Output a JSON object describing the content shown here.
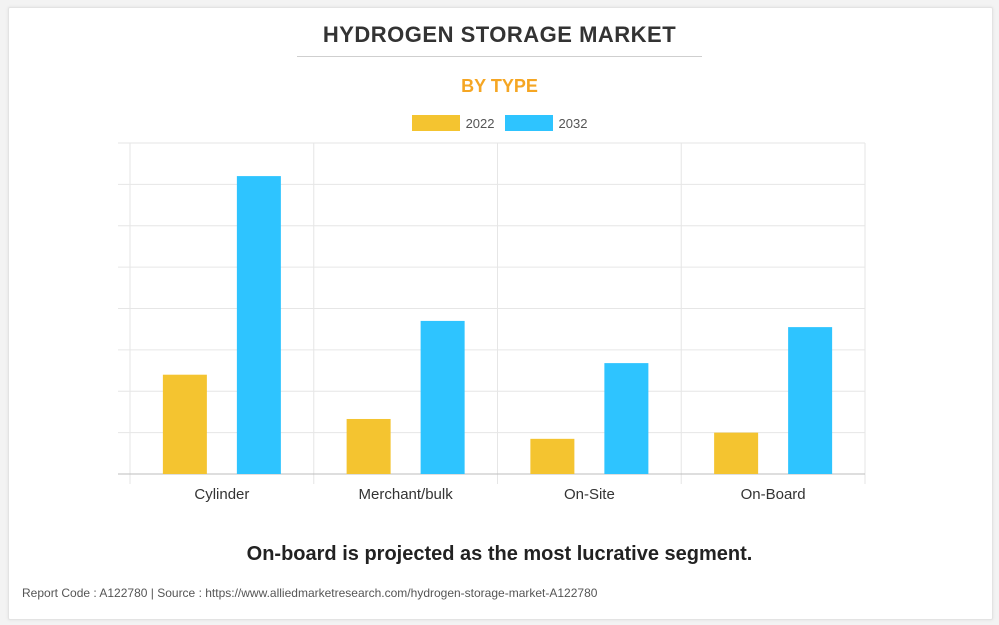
{
  "title": "HYDROGEN STORAGE MARKET",
  "subtitle": "BY TYPE",
  "footnote": "On-board is projected as the most lucrative segment.",
  "report_line": "Report Code : A122780  |  Source : https://www.alliedmarketresearch.com/hydrogen-storage-market-A122780",
  "colors": {
    "series_2022": "#f4c430",
    "series_2032": "#2ec4ff",
    "subtitle": "#f5a623"
  },
  "chart_data": {
    "type": "bar",
    "categories": [
      "Cylinder",
      "Merchant/bulk",
      "On-Site",
      "On-Board"
    ],
    "series": [
      {
        "name": "2022",
        "values": [
          2.4,
          1.33,
          0.85,
          1.0
        ]
      },
      {
        "name": "2032",
        "values": [
          7.2,
          3.7,
          2.68,
          3.55
        ]
      }
    ],
    "ylim": [
      0,
      8
    ],
    "grid": true,
    "legend_position": "top-center",
    "xlabel": "",
    "ylabel": ""
  }
}
